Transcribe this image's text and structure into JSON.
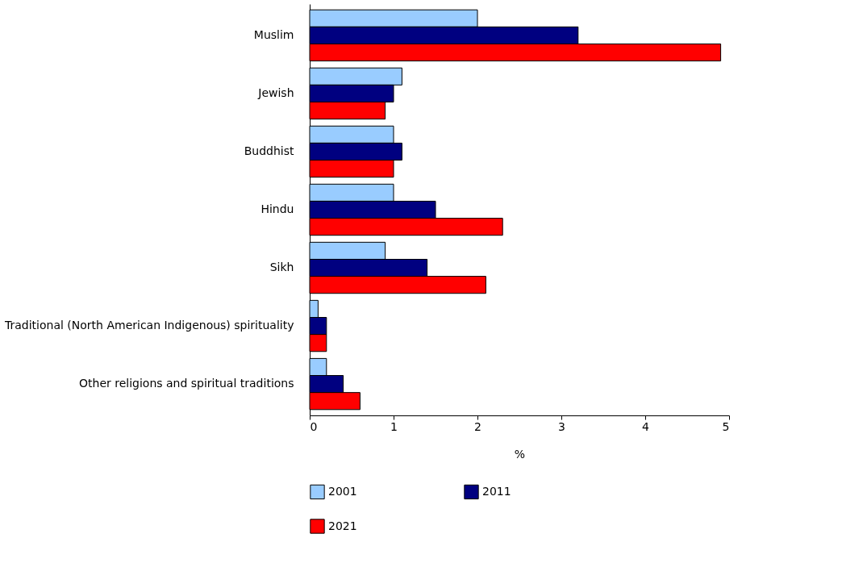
{
  "chart_data": {
    "type": "bar",
    "orientation": "horizontal",
    "xlabel": "%",
    "categories": [
      "Muslim",
      "Jewish",
      "Buddhist",
      "Hindu",
      "Sikh",
      "Traditional (North American Indigenous) spirituality",
      "Other religions and spiritual traditions"
    ],
    "series": [
      {
        "name": "2001",
        "color": "#99ccff",
        "values": [
          2.0,
          1.1,
          1.0,
          1.0,
          0.9,
          0.1,
          0.2
        ]
      },
      {
        "name": "2011",
        "color": "#000080",
        "values": [
          3.2,
          1.0,
          1.1,
          1.5,
          1.4,
          0.2,
          0.4
        ]
      },
      {
        "name": "2021",
        "color": "#ff0000",
        "values": [
          4.9,
          0.9,
          1.0,
          2.3,
          2.1,
          0.2,
          0.6
        ]
      }
    ],
    "xlim": [
      0,
      5
    ],
    "xticks": [
      0,
      1,
      2,
      3,
      4,
      5
    ],
    "grid": false,
    "legend": "bottom"
  }
}
